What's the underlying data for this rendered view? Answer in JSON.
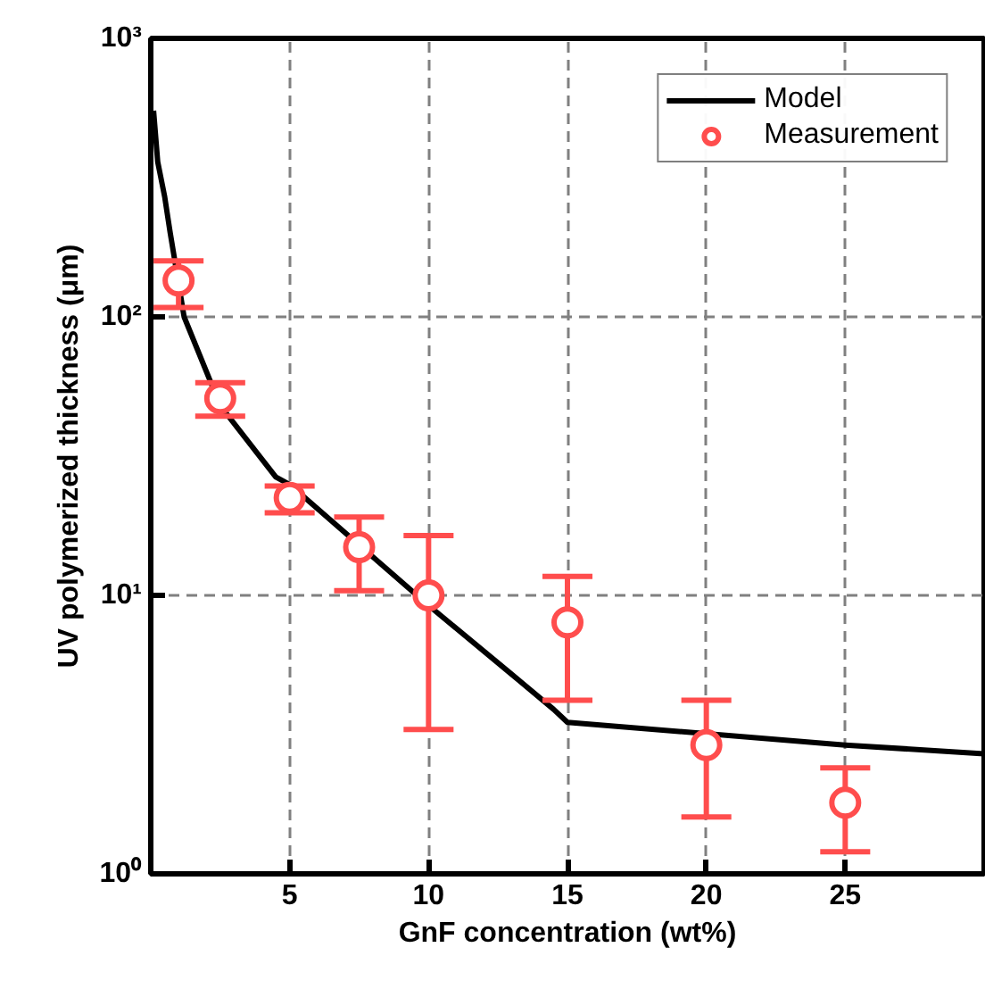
{
  "chart_data": {
    "type": "line",
    "xlabel": "GnF concentration (wt%)",
    "ylabel": "UV polymerized thickness (μm)",
    "xlim": [
      0,
      30
    ],
    "xticks": [
      5,
      10,
      15,
      20,
      25
    ],
    "ylim": [
      1,
      1000
    ],
    "yticks": [
      {
        "value": 1,
        "label": "10⁰"
      },
      {
        "value": 10,
        "label": "10¹"
      },
      {
        "value": 100,
        "label": "10²"
      },
      {
        "value": 1000,
        "label": "10³"
      }
    ],
    "log": "y",
    "grid": true,
    "legend": "top right",
    "series": [
      {
        "name": "Model",
        "color": "#000000",
        "marker": "none",
        "line_style": "solid",
        "x": [
          0.1,
          0.25,
          0.5,
          0.7,
          1.2,
          2.5,
          4.5,
          5,
          10,
          13,
          14.5,
          15,
          25,
          30
        ],
        "values": [
          550,
          360,
          270,
          200,
          100,
          48,
          26.6,
          25,
          9.2,
          5.2,
          3.9,
          3.5,
          2.9,
          2.7
        ]
      },
      {
        "name": "Measurement",
        "type": "scatter",
        "color": "#ff4d4d",
        "marker": "circle",
        "x": [
          1,
          2.5,
          5,
          7.5,
          10,
          15,
          20,
          25
        ],
        "values": [
          135,
          51,
          22.4,
          14.9,
          10,
          8.0,
          2.9,
          1.8
        ],
        "errors": [
          [
            108,
            159
          ],
          [
            44,
            58
          ],
          [
            19.8,
            24.7
          ],
          [
            10.4,
            19.1
          ],
          [
            3.3,
            16.4
          ],
          [
            4.2,
            11.7
          ],
          [
            1.6,
            4.2
          ],
          [
            1.2,
            2.4
          ]
        ]
      }
    ]
  }
}
